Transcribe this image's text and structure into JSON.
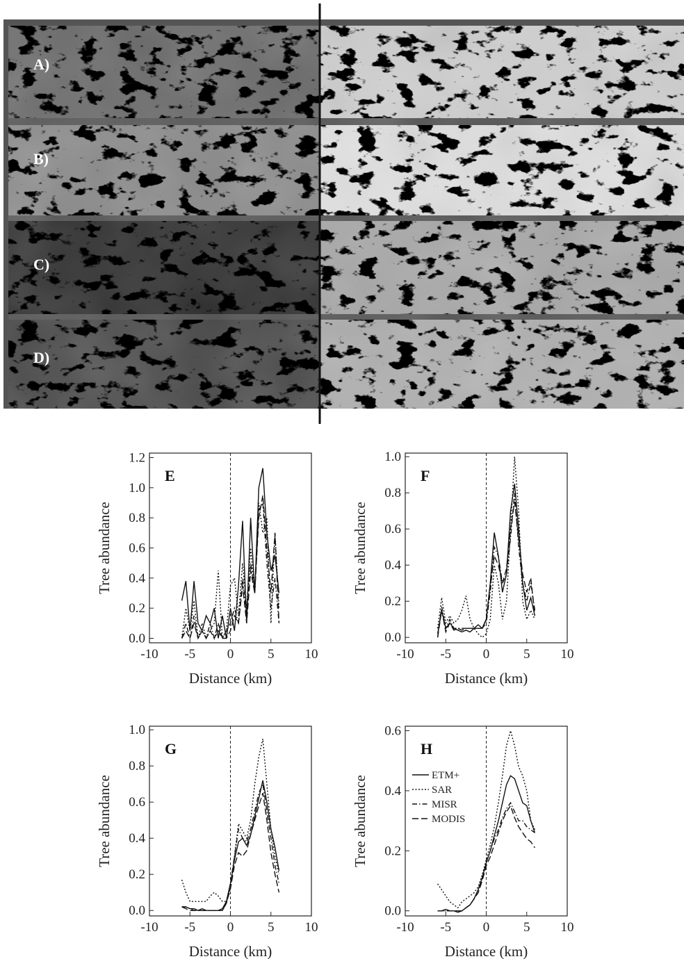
{
  "figure": {
    "panel_labels": [
      "A)",
      "B)",
      "C)",
      "D)"
    ]
  },
  "chart_data": [
    {
      "type": "line",
      "title": "E",
      "xlabel": "Distance (km)",
      "ylabel": "Tree abundance",
      "xlim": [
        -10,
        10
      ],
      "xticks": [
        -10,
        -5,
        0,
        5,
        10
      ],
      "ylim": [
        -0.03,
        1.23
      ],
      "yticks": [
        {
          "value": 0,
          "label": "0.0"
        },
        0.2,
        0.4,
        0.6,
        0.8,
        {
          "value": 1,
          "label": "1.0"
        },
        1.2
      ],
      "vline": 0,
      "x": [
        -6,
        -5.5,
        -5,
        -4.5,
        -4,
        -3.5,
        -3,
        -2.5,
        -2,
        -1.5,
        -1,
        -0.5,
        0,
        0.5,
        1,
        1.5,
        2,
        2.5,
        3,
        3.5,
        4,
        4.5,
        5,
        5.5,
        6
      ],
      "series": [
        {
          "style": "solid",
          "color": "#111",
          "values": [
            0.25,
            0.38,
            0.05,
            0.38,
            0.1,
            0.05,
            0.15,
            0.1,
            0.2,
            0,
            0.15,
            0,
            0.2,
            0.05,
            0.35,
            0.78,
            0.1,
            0.8,
            0.3,
            1.0,
            1.13,
            0.7,
            0.45,
            0.55,
            0.3
          ]
        },
        {
          "style": "dotted",
          "color": "#111",
          "values": [
            0,
            0.2,
            0.05,
            0.25,
            0,
            0.1,
            0,
            0.05,
            0.1,
            0.45,
            0,
            0.05,
            0.35,
            0.4,
            0.15,
            0.5,
            0.2,
            0.6,
            0.3,
            0.9,
            0.7,
            0.8,
            0.1,
            0.7,
            0.2
          ]
        },
        {
          "style": "dash-dot",
          "color": "#111",
          "values": [
            0,
            0.1,
            0,
            0.15,
            0,
            0.05,
            0,
            0.1,
            0,
            0.1,
            0,
            0.05,
            0.1,
            0.2,
            0.1,
            0.4,
            0.15,
            0.5,
            0.3,
            0.85,
            0.9,
            0.5,
            0.2,
            0.4,
            0.1
          ]
        },
        {
          "style": "dashed",
          "color": "#111",
          "values": [
            0,
            0.05,
            0,
            0.1,
            0,
            0.05,
            0,
            0.05,
            0,
            0.05,
            0,
            0,
            0.05,
            0.15,
            0.1,
            0.35,
            0.1,
            0.45,
            0.3,
            0.8,
            0.95,
            0.6,
            0.3,
            0.7,
            0.1
          ]
        }
      ]
    },
    {
      "type": "line",
      "title": "F",
      "xlabel": "Distance (km)",
      "ylabel": "Tree abundance",
      "xlim": [
        -10,
        10
      ],
      "xticks": [
        -10,
        -5,
        0,
        5,
        10
      ],
      "ylim": [
        -0.03,
        1.02
      ],
      "yticks": [
        {
          "value": 0,
          "label": "0.0"
        },
        0.2,
        0.4,
        0.6,
        0.8,
        {
          "value": 1,
          "label": "1.0"
        }
      ],
      "vline": 0,
      "x": [
        -6,
        -5.5,
        -5,
        -4.5,
        -4,
        -3.5,
        -3,
        -2.5,
        -2,
        -1.5,
        -1,
        -0.5,
        0,
        0.5,
        1,
        1.5,
        2,
        2.5,
        3,
        3.5,
        4,
        4.5,
        5,
        5.5,
        6
      ],
      "series": [
        {
          "style": "solid",
          "color": "#111",
          "values": [
            0.02,
            0.15,
            0.05,
            0.08,
            0.05,
            0.04,
            0.03,
            0.04,
            0.03,
            0.05,
            0.07,
            0.05,
            0.1,
            0.3,
            0.58,
            0.45,
            0.25,
            0.35,
            0.7,
            0.85,
            0.6,
            0.3,
            0.15,
            0.22,
            0.12
          ]
        },
        {
          "style": "dotted",
          "color": "#111",
          "values": [
            0.05,
            0.22,
            0.08,
            0.12,
            0.08,
            0.1,
            0.15,
            0.23,
            0.1,
            0.05,
            0.02,
            0,
            0.02,
            0.1,
            0.4,
            0.3,
            0.1,
            0.2,
            0.6,
            1.0,
            0.7,
            0.2,
            0.1,
            0.15,
            0.1
          ]
        },
        {
          "style": "dash-dot",
          "color": "#111",
          "values": [
            0,
            0.17,
            0.05,
            0.1,
            0.05,
            0.05,
            0.05,
            0.05,
            0.05,
            0.05,
            0.05,
            0.05,
            0.08,
            0.25,
            0.5,
            0.45,
            0.3,
            0.35,
            0.55,
            0.8,
            0.5,
            0.3,
            0.2,
            0.3,
            0.15
          ]
        },
        {
          "style": "dashed",
          "color": "#111",
          "values": [
            0,
            0.15,
            0.03,
            0.08,
            0.04,
            0.05,
            0.04,
            0.05,
            0.05,
            0.05,
            0.05,
            0.05,
            0.1,
            0.28,
            0.45,
            0.4,
            0.3,
            0.38,
            0.6,
            0.75,
            0.55,
            0.35,
            0.25,
            0.33,
            0.12
          ]
        }
      ]
    },
    {
      "type": "line",
      "title": "G",
      "xlabel": "Distance (km)",
      "ylabel": "Tree abundance",
      "xlim": [
        -10,
        10
      ],
      "xticks": [
        -10,
        -5,
        0,
        5,
        10
      ],
      "ylim": [
        -0.03,
        1.02
      ],
      "yticks": [
        {
          "value": 0,
          "label": "0.0"
        },
        0.2,
        0.4,
        0.6,
        0.8,
        {
          "value": 1,
          "label": "1.0"
        }
      ],
      "vline": 0,
      "x": [
        -6,
        -5.5,
        -5,
        -4.5,
        -4,
        -3.5,
        -3,
        -2.5,
        -2,
        -1.5,
        -1,
        -0.5,
        0,
        0.5,
        1,
        1.5,
        2,
        2.5,
        3,
        3.5,
        4,
        4.5,
        5,
        5.5,
        6
      ],
      "series": [
        {
          "style": "solid",
          "color": "#111",
          "values": [
            0.02,
            0.02,
            0.01,
            0.01,
            0,
            0.01,
            0,
            0,
            0,
            0,
            0.01,
            0.05,
            0.15,
            0.28,
            0.38,
            0.4,
            0.36,
            0.42,
            0.52,
            0.62,
            0.72,
            0.6,
            0.45,
            0.35,
            0.22
          ]
        },
        {
          "style": "dotted",
          "color": "#111",
          "values": [
            0.17,
            0.1,
            0.05,
            0.05,
            0.05,
            0.05,
            0.05,
            0.08,
            0.1,
            0.08,
            0.05,
            0.05,
            0.12,
            0.3,
            0.48,
            0.44,
            0.4,
            0.5,
            0.7,
            0.85,
            0.95,
            0.7,
            0.45,
            0.3,
            0.2
          ]
        },
        {
          "style": "dash-dot",
          "color": "#111",
          "values": [
            0.02,
            0.02,
            0.01,
            0,
            0,
            0,
            0,
            0,
            0,
            0,
            0,
            0.04,
            0.15,
            0.3,
            0.45,
            0.4,
            0.38,
            0.45,
            0.55,
            0.65,
            0.7,
            0.55,
            0.4,
            0.25,
            0.15
          ]
        },
        {
          "style": "dashed",
          "color": "#111",
          "values": [
            0.02,
            0.01,
            0,
            0,
            0,
            0,
            0,
            0,
            0,
            0,
            0,
            0.04,
            0.12,
            0.25,
            0.32,
            0.3,
            0.33,
            0.42,
            0.5,
            0.58,
            0.65,
            0.5,
            0.32,
            0.2,
            0.1
          ]
        }
      ]
    },
    {
      "type": "line",
      "title": "H",
      "xlabel": "Distance (km)",
      "ylabel": "Tree abundance",
      "xlim": [
        -10,
        10
      ],
      "xticks": [
        -10,
        -5,
        0,
        5,
        10
      ],
      "ylim": [
        -0.017,
        0.615
      ],
      "yticks": [
        {
          "value": 0,
          "label": "0.0"
        },
        0.2,
        0.4,
        0.6
      ],
      "vline": 0,
      "legend": "upper left",
      "x": [
        -6,
        -5.5,
        -5,
        -4.5,
        -4,
        -3.5,
        -3,
        -2.5,
        -2,
        -1.5,
        -1,
        -0.5,
        0,
        0.5,
        1,
        1.5,
        2,
        2.5,
        3,
        3.5,
        4,
        4.5,
        5,
        5.5,
        6
      ],
      "series": [
        {
          "name": "ETM+",
          "style": "solid",
          "color": "#111",
          "values": [
            0,
            0,
            0.005,
            0,
            0,
            -0.005,
            0,
            0.01,
            0.02,
            0.04,
            0.07,
            0.11,
            0.16,
            0.2,
            0.25,
            0.3,
            0.36,
            0.42,
            0.45,
            0.44,
            0.4,
            0.36,
            0.35,
            0.3,
            0.26
          ]
        },
        {
          "name": "SAR",
          "style": "dotted",
          "color": "#111",
          "values": [
            0.09,
            0.07,
            0.05,
            0.03,
            0.02,
            0.01,
            0.03,
            0.04,
            0.05,
            0.06,
            0.08,
            0.12,
            0.17,
            0.22,
            0.28,
            0.36,
            0.45,
            0.55,
            0.6,
            0.55,
            0.48,
            0.45,
            0.4,
            0.3,
            0.27
          ]
        },
        {
          "name": "MISR",
          "style": "dash-dot",
          "color": "#111",
          "values": [
            0,
            0,
            0,
            0,
            0,
            0,
            0,
            0.01,
            0.02,
            0.04,
            0.07,
            0.11,
            0.16,
            0.2,
            0.24,
            0.27,
            0.31,
            0.34,
            0.36,
            0.33,
            0.3,
            0.3,
            0.28,
            0.27,
            0.26
          ]
        },
        {
          "name": "MODIS",
          "style": "dashed",
          "color": "#111",
          "values": [
            0,
            0,
            0,
            0,
            0,
            0,
            0,
            0.01,
            0.02,
            0.04,
            0.06,
            0.1,
            0.15,
            0.18,
            0.22,
            0.26,
            0.3,
            0.33,
            0.35,
            0.31,
            0.28,
            0.26,
            0.24,
            0.23,
            0.21
          ]
        }
      ]
    }
  ]
}
